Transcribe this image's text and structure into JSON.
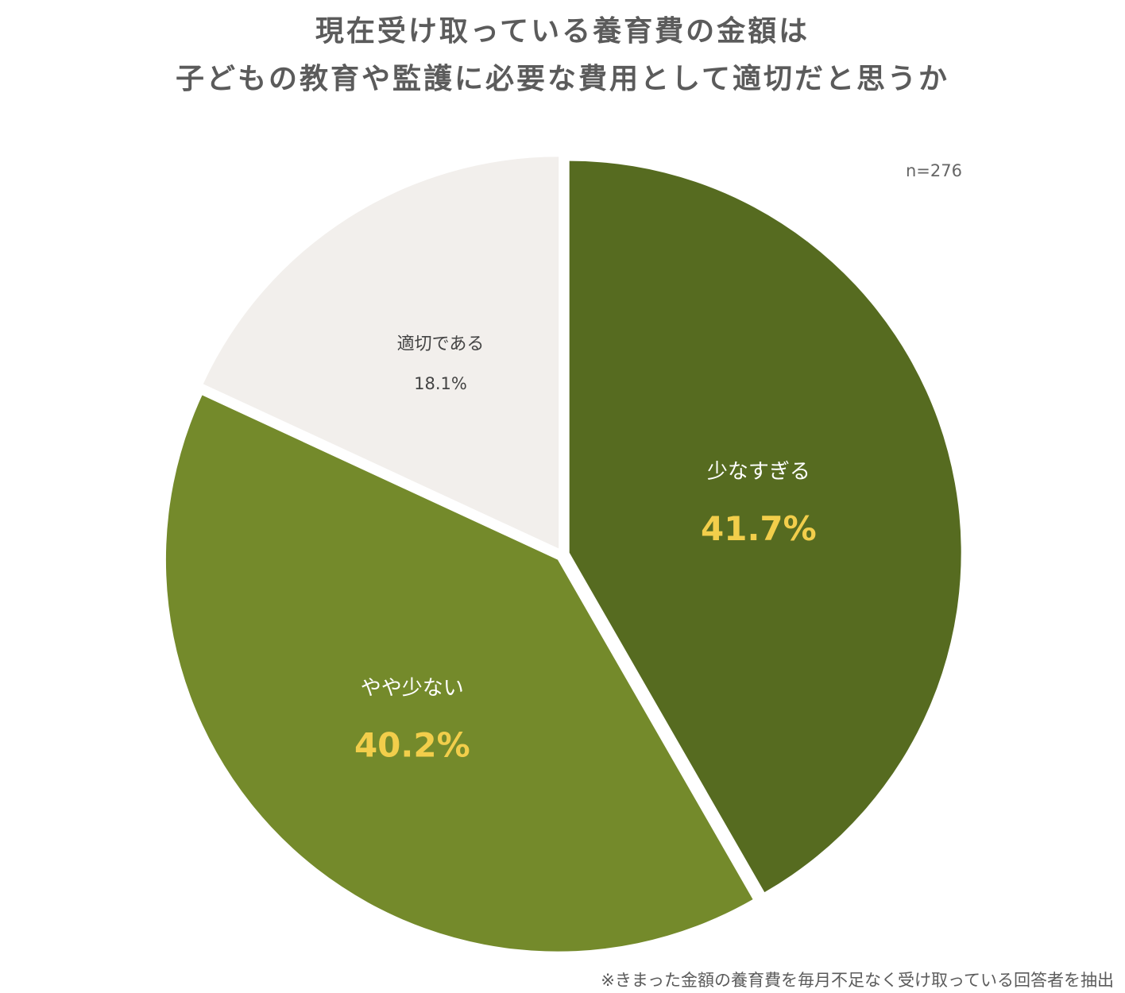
{
  "title": {
    "line1": "現在受け取っている養育費の金額は",
    "line2": "子どもの教育や監護に必要な費用として適切だと思うか"
  },
  "sample_size": "n=276",
  "footnote": "※きまった金額の養育費を毎月不足なく受け取っている回答者を抽出",
  "chart_data": {
    "type": "pie",
    "title": "現在受け取っている養育費の金額は子どもの教育や監護に必要な費用として適切だと思うか",
    "slices": [
      {
        "label": "少なすぎる",
        "value": 41.7,
        "value_label": "41.7%",
        "color": "#566b20",
        "label_color": "#ffffff",
        "value_color": "#f2ce4b"
      },
      {
        "label": "やや少ない",
        "value": 40.2,
        "value_label": "40.2%",
        "color": "#748a2b",
        "label_color": "#ffffff",
        "value_color": "#f2ce4b"
      },
      {
        "label": "適切である",
        "value": 18.1,
        "value_label": "18.1%",
        "color": "#f2efec",
        "label_color": "#444444",
        "value_color": "#444444"
      }
    ],
    "start_angle_deg": 0,
    "direction": "clockwise",
    "exploded": true
  }
}
